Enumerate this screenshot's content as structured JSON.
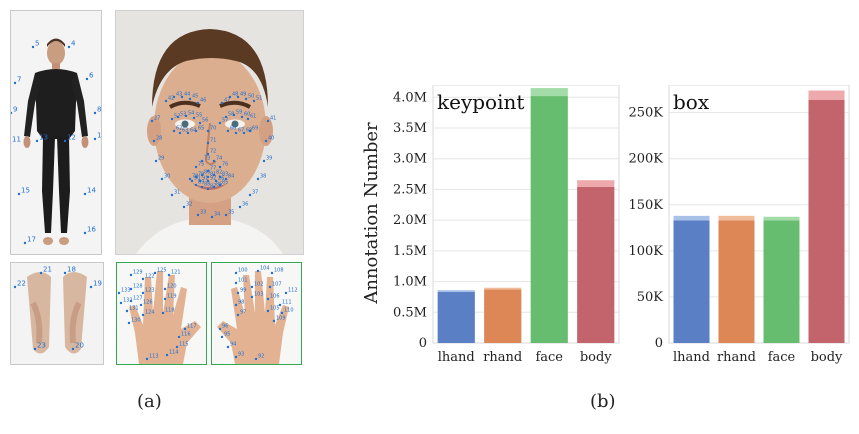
{
  "figure": {
    "panel_a_caption": "(a)",
    "panel_b_caption": "(b)"
  },
  "keypoint_labels": {
    "body": [
      "5",
      "4",
      "7",
      "6",
      "9",
      "8",
      "11",
      "10",
      "13",
      "12",
      "15",
      "14",
      "17",
      "16"
    ],
    "face": [
      "42",
      "43",
      "44",
      "45",
      "46",
      "47",
      "48",
      "49",
      "50",
      "51",
      "52",
      "53",
      "54",
      "55",
      "56",
      "57",
      "58",
      "59",
      "60",
      "61",
      "62",
      "63",
      "64",
      "65",
      "66",
      "67",
      "68",
      "69",
      "70",
      "71",
      "72",
      "73",
      "74",
      "75",
      "76",
      "77",
      "78",
      "79",
      "80",
      "81",
      "82",
      "83",
      "84",
      "85",
      "86",
      "87",
      "88",
      "89",
      "90",
      "91",
      "92",
      "26",
      "27",
      "28",
      "29",
      "30",
      "31",
      "32",
      "33",
      "34",
      "35",
      "36",
      "37",
      "38",
      "39",
      "40",
      "41"
    ],
    "feet": [
      "21",
      "18",
      "22",
      "19",
      "23",
      "20"
    ],
    "left_hand": [
      "129",
      "122",
      "125",
      "121",
      "128",
      "123",
      "120",
      "127",
      "126",
      "119",
      "131",
      "124",
      "118",
      "130",
      "117",
      "116",
      "115",
      "114",
      "113",
      "133",
      "132"
    ],
    "right_hand": [
      "100",
      "104",
      "108",
      "101",
      "102",
      "107",
      "99",
      "103",
      "106",
      "98",
      "105",
      "111",
      "97",
      "112",
      "110",
      "109",
      "96",
      "95",
      "94",
      "93",
      "92"
    ]
  },
  "chart_data": [
    {
      "type": "bar",
      "title": "keypoint",
      "ylabel": "Annotation Number",
      "categories": [
        "lhand",
        "rhand",
        "face",
        "body"
      ],
      "series": [
        {
          "values": [
            0.83,
            0.87,
            4.02,
            2.54
          ]
        },
        {
          "values": [
            0.03,
            0.03,
            0.13,
            0.11
          ]
        }
      ],
      "colors": [
        "#5a7fc4",
        "#dd8756",
        "#67bd6f",
        "#c3636c"
      ],
      "light_colors": [
        "#a8c1e8",
        "#f0bc99",
        "#a3dca8",
        "#eda9ac"
      ],
      "ylim": [
        0,
        4.2
      ],
      "yticks": [
        0,
        0.5,
        1.0,
        1.5,
        2.0,
        2.5,
        3.0,
        3.5,
        4.0
      ],
      "ytick_labels": [
        "0",
        "0.5M",
        "1.0M",
        "1.5M",
        "2.0M",
        "2.5M",
        "3.0M",
        "3.5M",
        "4.0M"
      ]
    },
    {
      "type": "bar",
      "title": "box",
      "categories": [
        "lhand",
        "rhand",
        "face",
        "body"
      ],
      "series": [
        {
          "values": [
            133,
            133,
            133,
            264
          ]
        },
        {
          "values": [
            5,
            5,
            4,
            10
          ]
        }
      ],
      "colors": [
        "#5a7fc4",
        "#dd8756",
        "#67bd6f",
        "#c3636c"
      ],
      "light_colors": [
        "#a8c1e8",
        "#f0bc99",
        "#a3dca8",
        "#eda9ac"
      ],
      "ylim": [
        0,
        280
      ],
      "yticks": [
        0,
        50,
        100,
        150,
        200,
        250
      ],
      "ytick_labels": [
        "0",
        "50K",
        "100K",
        "150K",
        "200K",
        "250K"
      ]
    }
  ]
}
